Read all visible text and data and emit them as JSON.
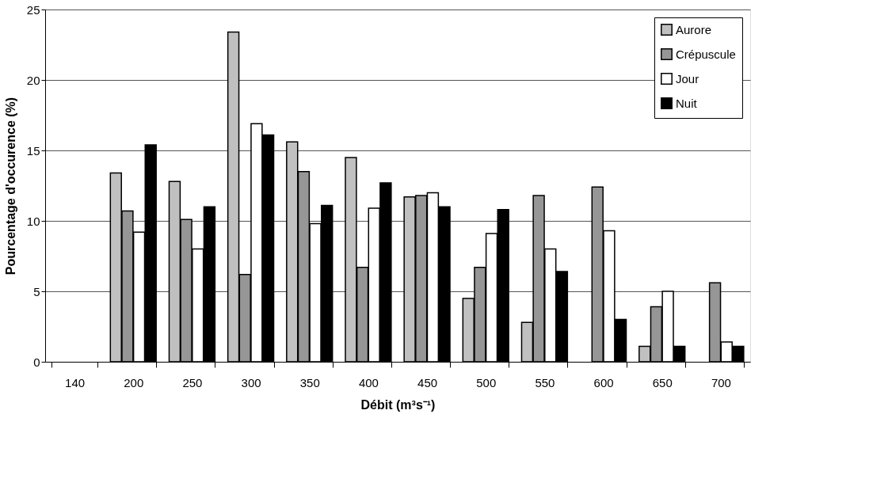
{
  "chart_data": {
    "type": "bar",
    "xlabel": "Débit (m³s⁻¹)",
    "ylabel": "Pourcentage d'occurence (%)",
    "categories": [
      "140",
      "200",
      "250",
      "300",
      "350",
      "400",
      "450",
      "500",
      "550",
      "600",
      "650",
      "700"
    ],
    "series": [
      {
        "name": "Aurore",
        "color": "#c0c0c0",
        "values": [
          null,
          13.4,
          12.8,
          23.4,
          15.6,
          14.5,
          11.7,
          4.5,
          2.8,
          null,
          1.1,
          null
        ]
      },
      {
        "name": "Crépuscule",
        "color": "#969696",
        "values": [
          null,
          10.7,
          10.1,
          6.2,
          13.5,
          6.7,
          11.8,
          6.7,
          11.8,
          12.4,
          3.9,
          5.6
        ]
      },
      {
        "name": "Jour",
        "color": "#ffffff",
        "values": [
          null,
          9.2,
          8.0,
          16.9,
          9.8,
          10.9,
          12.0,
          9.1,
          8.0,
          9.3,
          5.0,
          1.4
        ]
      },
      {
        "name": "Nuit",
        "color": "#000000",
        "values": [
          null,
          15.4,
          11.0,
          16.1,
          11.1,
          12.7,
          11.0,
          10.8,
          6.4,
          3.0,
          1.1,
          1.1
        ]
      }
    ],
    "ylim": [
      0,
      25
    ],
    "yticks": [
      0,
      5,
      10,
      15,
      20,
      25
    ],
    "grid": "y",
    "legend": "top right"
  }
}
